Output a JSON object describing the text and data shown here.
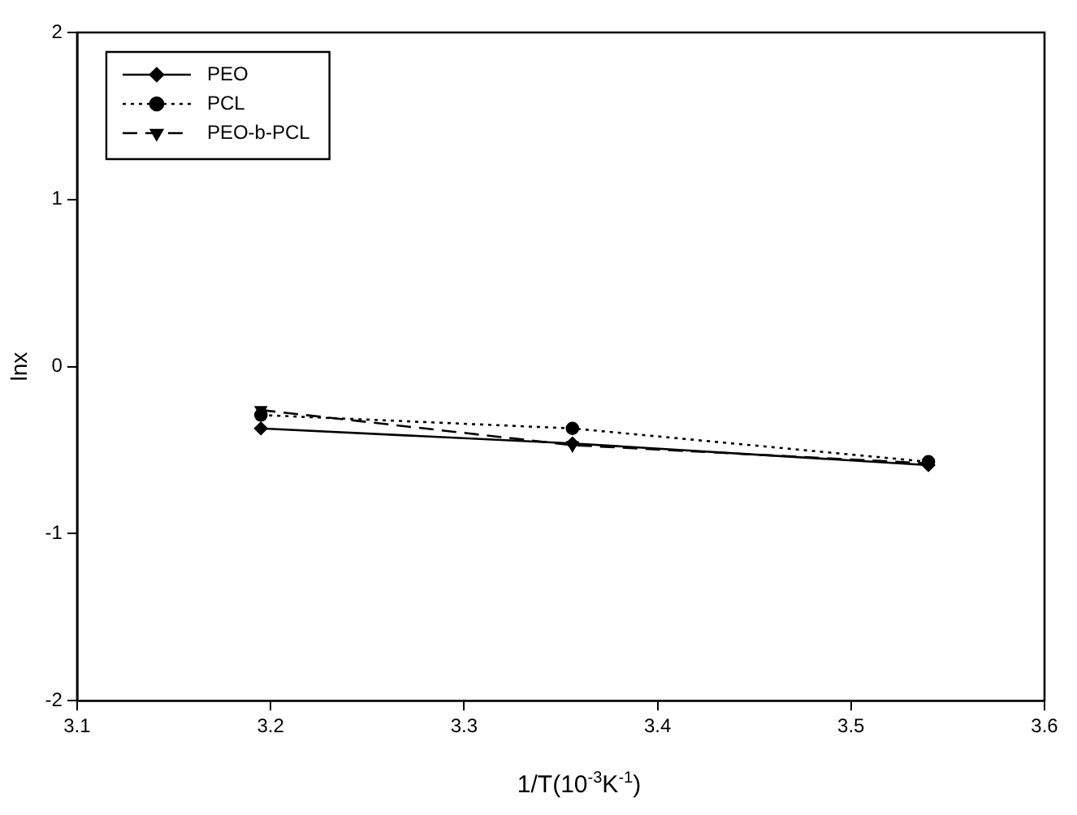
{
  "chart_data": {
    "type": "line",
    "xlabel": "1/T(10$^{-3}$K$^{-1}$)",
    "ylabel": "lnx",
    "xlim": [
      3.1,
      3.6
    ],
    "xticks": [
      3.1,
      3.2,
      3.3,
      3.4,
      3.5,
      3.6
    ],
    "ylim": [
      -2,
      2
    ],
    "yticks": [
      -2,
      -1,
      0,
      1,
      2
    ],
    "grid": false,
    "legend": "top left",
    "series": [
      {
        "name": "PEO",
        "color": "#000000",
        "marker": "diamond",
        "line_style": "solid",
        "x": [
          3.195,
          3.356,
          3.54
        ],
        "values": [
          -0.37,
          -0.46,
          -0.59
        ]
      },
      {
        "name": "PCL",
        "color": "#000000",
        "marker": "circle",
        "line_style": "dotted",
        "x": [
          3.195,
          3.356,
          3.54
        ],
        "values": [
          -0.29,
          -0.37,
          -0.57
        ]
      },
      {
        "name": "PEO-b-PCL",
        "color": "#000000",
        "marker": "triangle",
        "line_style": "dashed",
        "x": [
          3.195,
          3.356,
          3.54
        ],
        "values": [
          -0.26,
          -0.47,
          -0.58
        ]
      }
    ]
  }
}
